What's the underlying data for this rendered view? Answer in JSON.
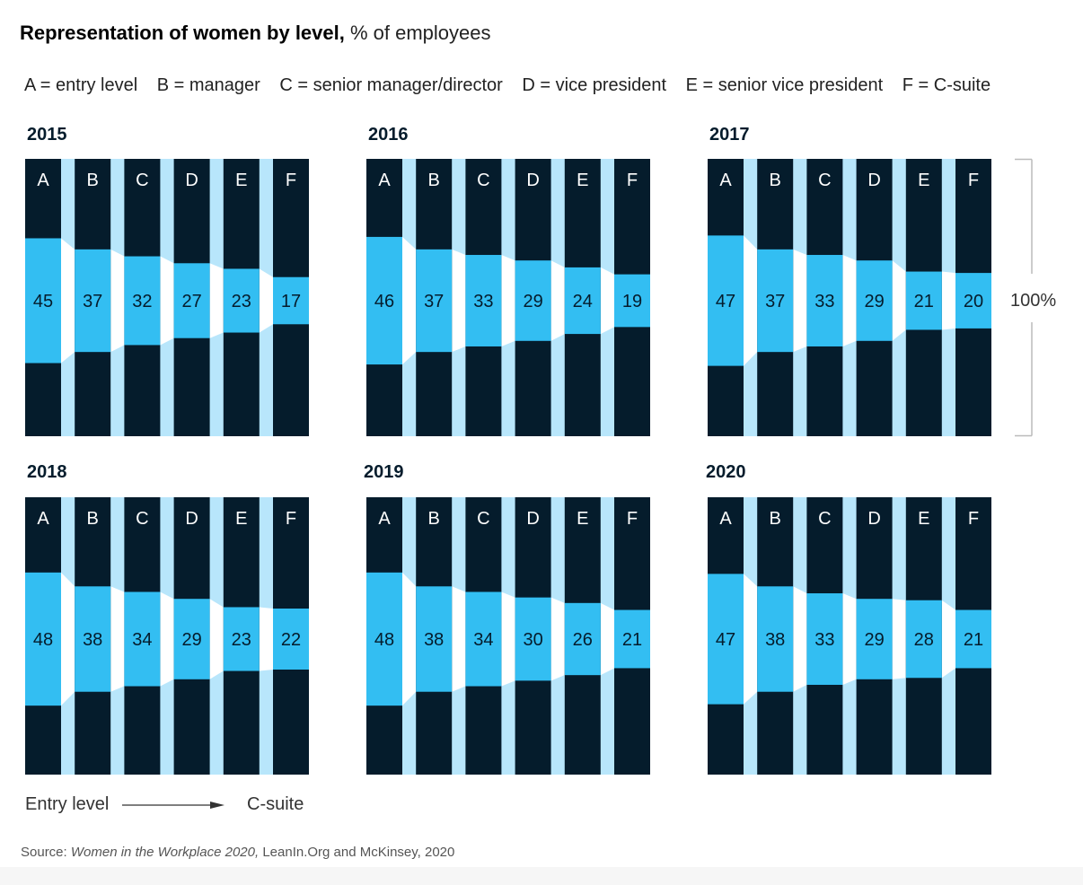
{
  "title": {
    "bold": "Representation of women by level,",
    "rest": " % of employees"
  },
  "legend": [
    "A = entry level",
    "B = manager",
    "C = senior manager/director",
    "D = vice president",
    "E = senior vice president",
    "F = C-suite"
  ],
  "bracket_label": "100%",
  "axis_note": {
    "left": "Entry level",
    "right": "C-suite"
  },
  "source": {
    "prefix": "Source: ",
    "italic": "Women in the Workplace 2020,",
    "rest": " LeanIn.Org and McKinsey, 2020"
  },
  "colors": {
    "dark": "#051c2c",
    "women": "#33bef2",
    "light_gap": "#b8e6fb",
    "white_flow": "#ffffff"
  },
  "chart_data": {
    "type": "bar",
    "categories": [
      "A",
      "B",
      "C",
      "D",
      "E",
      "F"
    ],
    "unit": "% of employees",
    "ylim": [
      0,
      100
    ],
    "panels": [
      {
        "year": "2015",
        "values": [
          45,
          37,
          32,
          27,
          23,
          17
        ]
      },
      {
        "year": "2016",
        "values": [
          46,
          37,
          33,
          29,
          24,
          19
        ]
      },
      {
        "year": "2017",
        "values": [
          47,
          37,
          33,
          29,
          21,
          20
        ]
      },
      {
        "year": "2018",
        "values": [
          48,
          38,
          34,
          29,
          23,
          22
        ]
      },
      {
        "year": "2019",
        "values": [
          48,
          38,
          34,
          30,
          26,
          21
        ]
      },
      {
        "year": "2020",
        "values": [
          47,
          38,
          33,
          29,
          28,
          21
        ]
      }
    ]
  }
}
